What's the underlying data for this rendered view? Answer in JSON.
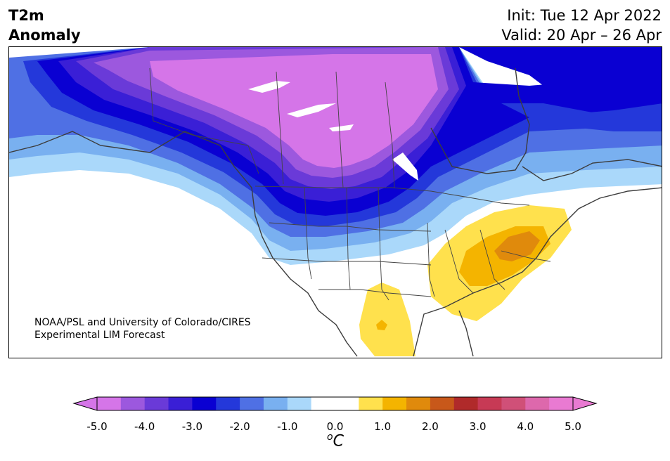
{
  "header": {
    "title_line1": "T2m",
    "title_line2": "Anomaly",
    "init_label": "Init: Tue 12 Apr 2022",
    "valid_label": "Valid: 20 Apr – 26 Apr"
  },
  "credit": {
    "line1": "NOAA/PSL and University of Colorado/CIRES",
    "line2": "Experimental LIM Forecast"
  },
  "colorbar": {
    "tick_labels": [
      "-5.0",
      "-4.0",
      "-3.0",
      "-2.0",
      "-1.0",
      "0.0",
      "1.0",
      "2.0",
      "3.0",
      "4.0",
      "5.0"
    ],
    "unit_base": "C",
    "unit_sup": "o",
    "colors": [
      "#d575e8",
      "#9c58de",
      "#6a3ad8",
      "#3a1fd6",
      "#0a00d2",
      "#2438da",
      "#4f70e4",
      "#79b0f0",
      "#aad8fa",
      "#ffffff",
      "#ffffff",
      "#ffe14d",
      "#f4b400",
      "#e08a0c",
      "#c8581a",
      "#b02a2a",
      "#c73a55",
      "#d05078",
      "#dd68ac",
      "#e97ad2"
    ],
    "extend_low_color": "#d575e8",
    "extend_high_color": "#e97ad2"
  },
  "map": {
    "land_color": "#ffffff",
    "coast_color": "#3c3c3c",
    "border_color": "#444444"
  }
}
